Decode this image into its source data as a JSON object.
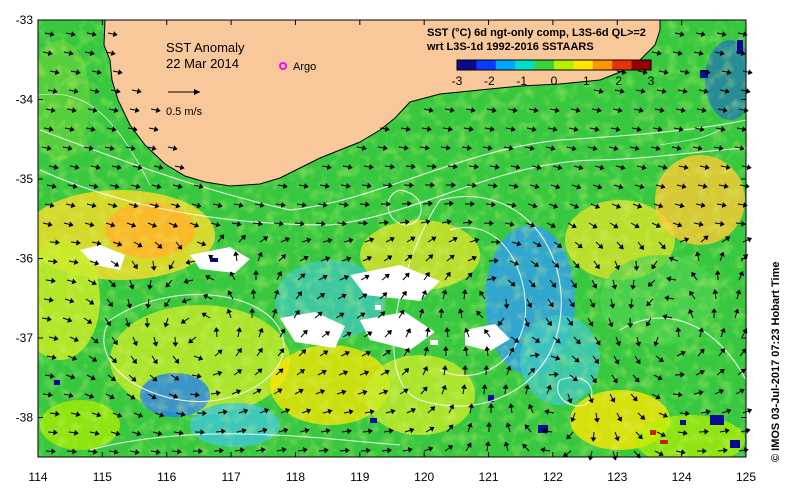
{
  "map": {
    "title": "SST Anomaly",
    "date": "22 Mar 2014",
    "argo_label": "Argo",
    "vector_scale_label": "0.5 m/s",
    "header_line1": "SST (°C) 6d ngt-only comp, L3S-6d QL>=2",
    "header_line2": "wrt L3S-1d 1992-2016 SSTAARS",
    "credit": "© IMOS 03-Jul-2017 07:23 Hobart Time",
    "lon_ticks": [
      "114",
      "115",
      "116",
      "117",
      "118",
      "119",
      "120",
      "121",
      "122",
      "123",
      "124",
      "125"
    ],
    "lat_ticks": [
      "-33",
      "-34",
      "-35",
      "-36",
      "-37",
      "-38"
    ],
    "colorbar": {
      "ticks": [
        "-3",
        "-2",
        "-1",
        "0",
        "1",
        "2",
        "3"
      ],
      "colors": [
        "#0b0b8a",
        "#0a3cff",
        "#00a5ff",
        "#00e0c8",
        "#3cd23c",
        "#b4f000",
        "#ffe600",
        "#ff9600",
        "#e63200",
        "#960000"
      ]
    },
    "colors": {
      "land": "#f8c89a",
      "ocean_base": "#38c840",
      "argo": "#ff00ff"
    }
  }
}
